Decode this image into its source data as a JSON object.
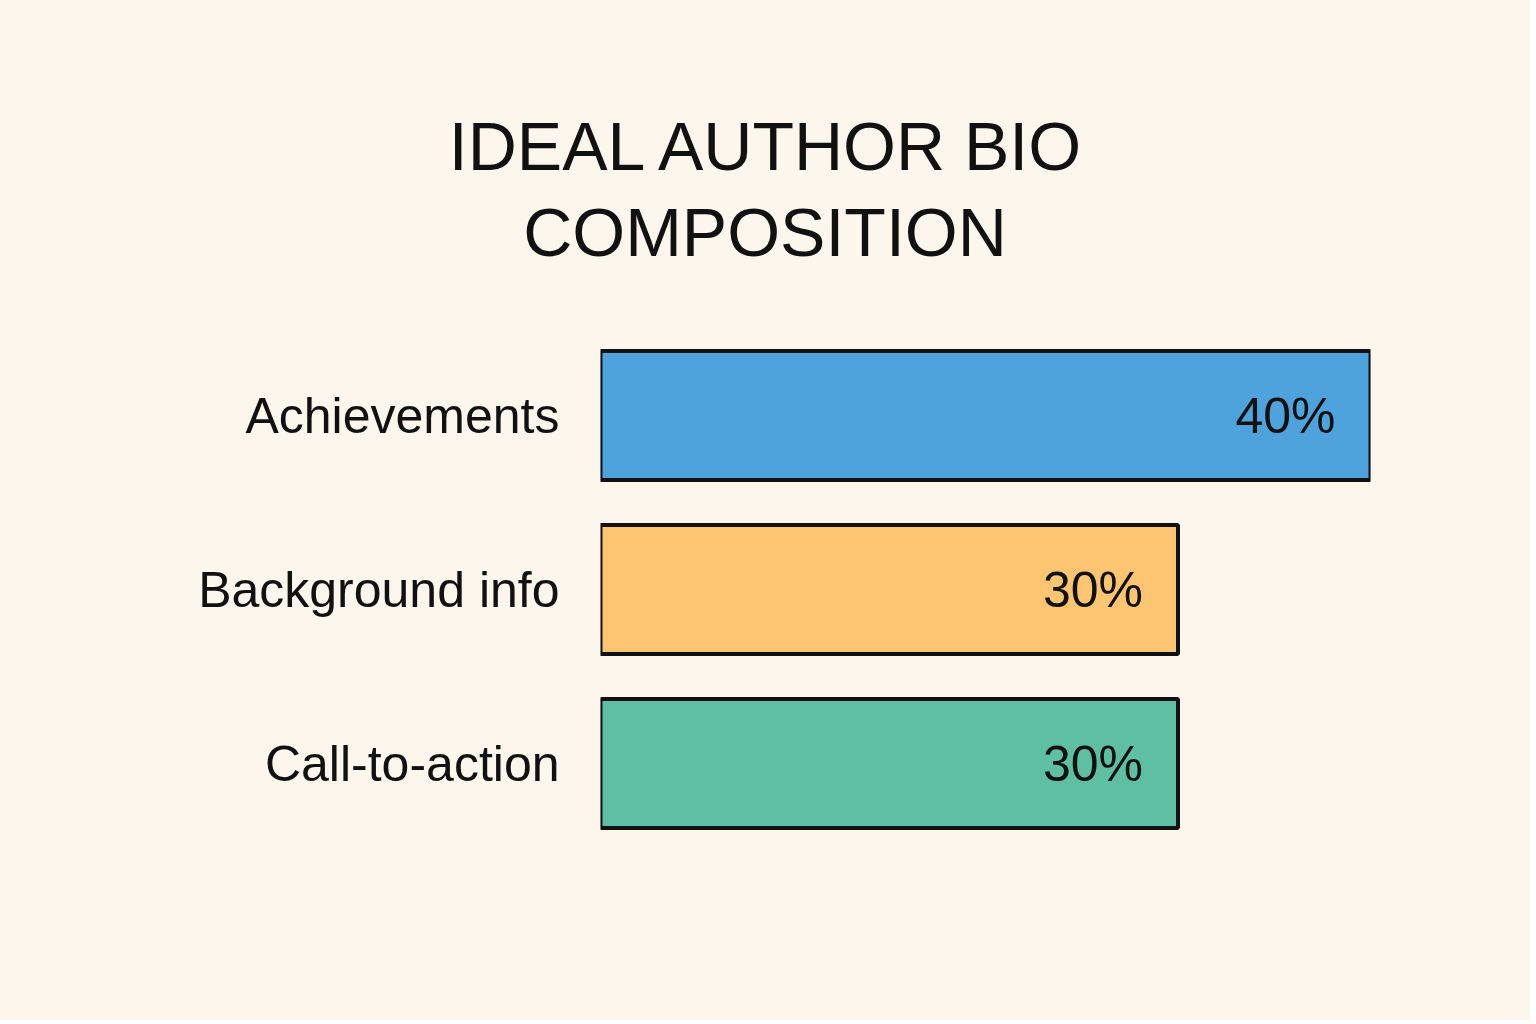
{
  "chart_data": {
    "type": "bar",
    "orientation": "horizontal",
    "title": "IDEAL AUTHOR BIO\nCOMPOSITION",
    "categories": [
      "Achievements",
      "Background info",
      "Call-to-action"
    ],
    "values": [
      40,
      30,
      30
    ],
    "colors": [
      "#4fa3dc",
      "#fdc571",
      "#5fbfa3"
    ],
    "value_labels": [
      "40%",
      "30%",
      "30%"
    ],
    "xlim": [
      0,
      40
    ],
    "tick_labels": "y",
    "grid": false
  }
}
